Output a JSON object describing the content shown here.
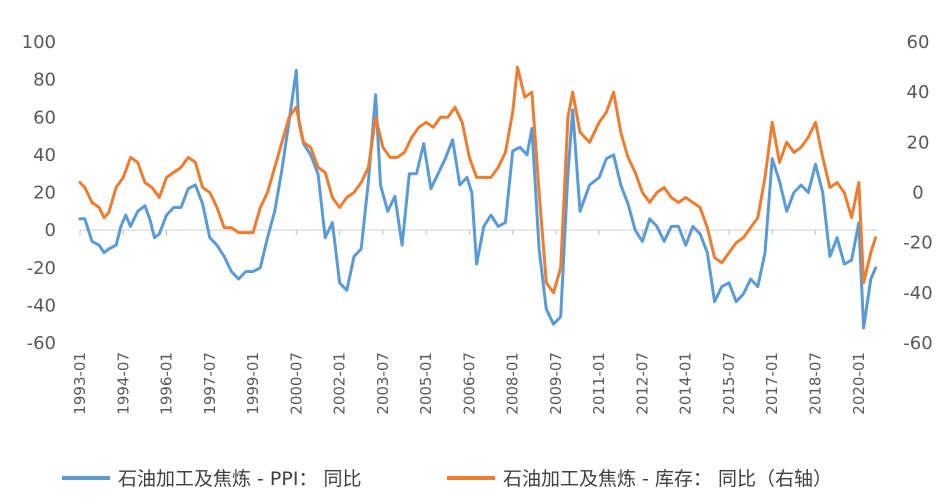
{
  "chart_data": {
    "type": "line",
    "title": "",
    "xlabel": "",
    "ylabel": "",
    "y_left": {
      "min": -60,
      "max": 100,
      "ticks": [
        100,
        80,
        60,
        40,
        20,
        0,
        -20,
        -40,
        -60
      ]
    },
    "y_right": {
      "min": -60,
      "max": 60,
      "ticks": [
        60,
        40,
        20,
        0,
        -20,
        -40,
        -60
      ]
    },
    "x_tick_labels": [
      "1993-01",
      "1994-07",
      "1996-01",
      "1997-07",
      "1999-01",
      "2000-07",
      "2002-01",
      "2003-07",
      "2005-01",
      "2006-07",
      "2008-01",
      "2009-07",
      "2011-01",
      "2012-07",
      "2014-01",
      "2015-07",
      "2017-01",
      "2018-07",
      "2020-01"
    ],
    "grid": "zero-line only",
    "legend_position": "bottom",
    "series": [
      {
        "name": "石油加工及焦炼 - PPI： 同比",
        "axis": "left",
        "color": "#5b9bd5",
        "points": [
          [
            "1993-01",
            6
          ],
          [
            "1993-03",
            6
          ],
          [
            "1993-06",
            -6
          ],
          [
            "1993-09",
            -8
          ],
          [
            "1993-11",
            -12
          ],
          [
            "1994-01",
            -10
          ],
          [
            "1994-04",
            -8
          ],
          [
            "1994-06",
            2
          ],
          [
            "1994-08",
            8
          ],
          [
            "1994-10",
            2
          ],
          [
            "1995-01",
            10
          ],
          [
            "1995-04",
            13
          ],
          [
            "1995-06",
            6
          ],
          [
            "1995-08",
            -4
          ],
          [
            "1995-10",
            -2
          ],
          [
            "1996-01",
            8
          ],
          [
            "1996-04",
            12
          ],
          [
            "1996-07",
            12
          ],
          [
            "1996-10",
            22
          ],
          [
            "1997-01",
            24
          ],
          [
            "1997-04",
            14
          ],
          [
            "1997-07",
            -4
          ],
          [
            "1997-10",
            -8
          ],
          [
            "1998-01",
            -14
          ],
          [
            "1998-04",
            -22
          ],
          [
            "1998-07",
            -26
          ],
          [
            "1998-10",
            -22
          ],
          [
            "1999-01",
            -22
          ],
          [
            "1999-04",
            -20
          ],
          [
            "1999-07",
            -4
          ],
          [
            "1999-10",
            10
          ],
          [
            "2000-01",
            32
          ],
          [
            "2000-04",
            58
          ],
          [
            "2000-07",
            85
          ],
          [
            "2000-08",
            58
          ],
          [
            "2000-10",
            46
          ],
          [
            "2001-01",
            40
          ],
          [
            "2001-04",
            30
          ],
          [
            "2001-07",
            -4
          ],
          [
            "2001-10",
            4
          ],
          [
            "2002-01",
            -28
          ],
          [
            "2002-04",
            -32
          ],
          [
            "2002-07",
            -14
          ],
          [
            "2002-10",
            -10
          ],
          [
            "2003-01",
            26
          ],
          [
            "2003-04",
            72
          ],
          [
            "2003-06",
            24
          ],
          [
            "2003-09",
            10
          ],
          [
            "2003-12",
            18
          ],
          [
            "2004-03",
            -8
          ],
          [
            "2004-06",
            30
          ],
          [
            "2004-09",
            30
          ],
          [
            "2004-12",
            46
          ],
          [
            "2005-03",
            22
          ],
          [
            "2005-06",
            30
          ],
          [
            "2005-09",
            38
          ],
          [
            "2005-12",
            48
          ],
          [
            "2006-03",
            24
          ],
          [
            "2006-06",
            28
          ],
          [
            "2006-08",
            20
          ],
          [
            "2006-10",
            -18
          ],
          [
            "2007-01",
            2
          ],
          [
            "2007-04",
            8
          ],
          [
            "2007-07",
            2
          ],
          [
            "2007-10",
            4
          ],
          [
            "2008-01",
            42
          ],
          [
            "2008-04",
            44
          ],
          [
            "2008-07",
            40
          ],
          [
            "2008-09",
            54
          ],
          [
            "2008-12",
            -10
          ],
          [
            "2009-03",
            -42
          ],
          [
            "2009-06",
            -50
          ],
          [
            "2009-09",
            -46
          ],
          [
            "2009-12",
            30
          ],
          [
            "2010-02",
            64
          ],
          [
            "2010-05",
            10
          ],
          [
            "2010-09",
            24
          ],
          [
            "2011-01",
            28
          ],
          [
            "2011-04",
            38
          ],
          [
            "2011-07",
            40
          ],
          [
            "2011-10",
            24
          ],
          [
            "2012-01",
            14
          ],
          [
            "2012-04",
            0
          ],
          [
            "2012-07",
            -6
          ],
          [
            "2012-10",
            6
          ],
          [
            "2013-01",
            2
          ],
          [
            "2013-04",
            -6
          ],
          [
            "2013-07",
            2
          ],
          [
            "2013-10",
            2
          ],
          [
            "2014-01",
            -8
          ],
          [
            "2014-04",
            2
          ],
          [
            "2014-07",
            -2
          ],
          [
            "2014-10",
            -12
          ],
          [
            "2015-01",
            -38
          ],
          [
            "2015-04",
            -30
          ],
          [
            "2015-07",
            -28
          ],
          [
            "2015-10",
            -38
          ],
          [
            "2016-01",
            -34
          ],
          [
            "2016-04",
            -26
          ],
          [
            "2016-07",
            -30
          ],
          [
            "2016-10",
            -12
          ],
          [
            "2017-01",
            38
          ],
          [
            "2017-04",
            26
          ],
          [
            "2017-07",
            10
          ],
          [
            "2017-10",
            20
          ],
          [
            "2018-01",
            24
          ],
          [
            "2018-04",
            20
          ],
          [
            "2018-07",
            35
          ],
          [
            "2018-10",
            20
          ],
          [
            "2019-01",
            -14
          ],
          [
            "2019-04",
            -4
          ],
          [
            "2019-07",
            -18
          ],
          [
            "2019-10",
            -16
          ],
          [
            "2020-01",
            4
          ],
          [
            "2020-03",
            -52
          ],
          [
            "2020-06",
            -26
          ],
          [
            "2020-08",
            -20
          ]
        ]
      },
      {
        "name": "石油加工及焦炼 - 库存： 同比（右轴）",
        "axis": "right",
        "color": "#ed7d31",
        "points": [
          [
            "1993-01",
            4
          ],
          [
            "1993-03",
            2
          ],
          [
            "1993-06",
            -4
          ],
          [
            "1993-09",
            -6
          ],
          [
            "1993-11",
            -10
          ],
          [
            "1994-01",
            -8
          ],
          [
            "1994-04",
            2
          ],
          [
            "1994-07",
            6
          ],
          [
            "1994-10",
            14
          ],
          [
            "1995-01",
            12
          ],
          [
            "1995-04",
            4
          ],
          [
            "1995-07",
            2
          ],
          [
            "1995-10",
            -2
          ],
          [
            "1996-01",
            6
          ],
          [
            "1996-04",
            8
          ],
          [
            "1996-07",
            10
          ],
          [
            "1996-10",
            14
          ],
          [
            "1997-01",
            12
          ],
          [
            "1997-04",
            2
          ],
          [
            "1997-07",
            0
          ],
          [
            "1997-10",
            -6
          ],
          [
            "1998-01",
            -14
          ],
          [
            "1998-04",
            -14
          ],
          [
            "1998-07",
            -16
          ],
          [
            "1998-10",
            -16
          ],
          [
            "1999-01",
            -16
          ],
          [
            "1999-04",
            -6
          ],
          [
            "1999-07",
            0
          ],
          [
            "1999-10",
            10
          ],
          [
            "2000-01",
            20
          ],
          [
            "2000-04",
            30
          ],
          [
            "2000-07",
            34
          ],
          [
            "2000-10",
            20
          ],
          [
            "2001-01",
            18
          ],
          [
            "2001-04",
            10
          ],
          [
            "2001-07",
            8
          ],
          [
            "2001-10",
            -2
          ],
          [
            "2002-01",
            -6
          ],
          [
            "2002-04",
            -2
          ],
          [
            "2002-07",
            0
          ],
          [
            "2002-10",
            4
          ],
          [
            "2003-01",
            10
          ],
          [
            "2003-04",
            30
          ],
          [
            "2003-07",
            18
          ],
          [
            "2003-10",
            14
          ],
          [
            "2004-01",
            14
          ],
          [
            "2004-04",
            16
          ],
          [
            "2004-07",
            22
          ],
          [
            "2004-10",
            26
          ],
          [
            "2005-01",
            28
          ],
          [
            "2005-04",
            26
          ],
          [
            "2005-07",
            30
          ],
          [
            "2005-10",
            30
          ],
          [
            "2006-01",
            34
          ],
          [
            "2006-04",
            28
          ],
          [
            "2006-07",
            14
          ],
          [
            "2006-10",
            6
          ],
          [
            "2007-01",
            6
          ],
          [
            "2007-04",
            6
          ],
          [
            "2007-07",
            10
          ],
          [
            "2007-10",
            16
          ],
          [
            "2008-01",
            32
          ],
          [
            "2008-03",
            50
          ],
          [
            "2008-06",
            38
          ],
          [
            "2008-09",
            40
          ],
          [
            "2008-12",
            0
          ],
          [
            "2009-03",
            -36
          ],
          [
            "2009-06",
            -40
          ],
          [
            "2009-09",
            -30
          ],
          [
            "2009-12",
            30
          ],
          [
            "2010-02",
            40
          ],
          [
            "2010-05",
            24
          ],
          [
            "2010-09",
            20
          ],
          [
            "2011-01",
            28
          ],
          [
            "2011-04",
            32
          ],
          [
            "2011-07",
            40
          ],
          [
            "2011-10",
            24
          ],
          [
            "2012-01",
            14
          ],
          [
            "2012-04",
            8
          ],
          [
            "2012-07",
            0
          ],
          [
            "2012-10",
            -4
          ],
          [
            "2013-01",
            0
          ],
          [
            "2013-04",
            2
          ],
          [
            "2013-07",
            -2
          ],
          [
            "2013-10",
            -4
          ],
          [
            "2014-01",
            -2
          ],
          [
            "2014-04",
            -4
          ],
          [
            "2014-07",
            -6
          ],
          [
            "2014-10",
            -14
          ],
          [
            "2015-01",
            -26
          ],
          [
            "2015-04",
            -28
          ],
          [
            "2015-07",
            -24
          ],
          [
            "2015-10",
            -20
          ],
          [
            "2016-01",
            -18
          ],
          [
            "2016-04",
            -14
          ],
          [
            "2016-07",
            -10
          ],
          [
            "2016-10",
            6
          ],
          [
            "2017-01",
            28
          ],
          [
            "2017-04",
            12
          ],
          [
            "2017-07",
            20
          ],
          [
            "2017-10",
            16
          ],
          [
            "2018-01",
            18
          ],
          [
            "2018-04",
            22
          ],
          [
            "2018-07",
            28
          ],
          [
            "2018-10",
            14
          ],
          [
            "2019-01",
            2
          ],
          [
            "2019-04",
            4
          ],
          [
            "2019-07",
            0
          ],
          [
            "2019-10",
            -10
          ],
          [
            "2020-01",
            4
          ],
          [
            "2020-03",
            -36
          ],
          [
            "2020-06",
            -24
          ],
          [
            "2020-08",
            -18
          ]
        ]
      }
    ]
  }
}
